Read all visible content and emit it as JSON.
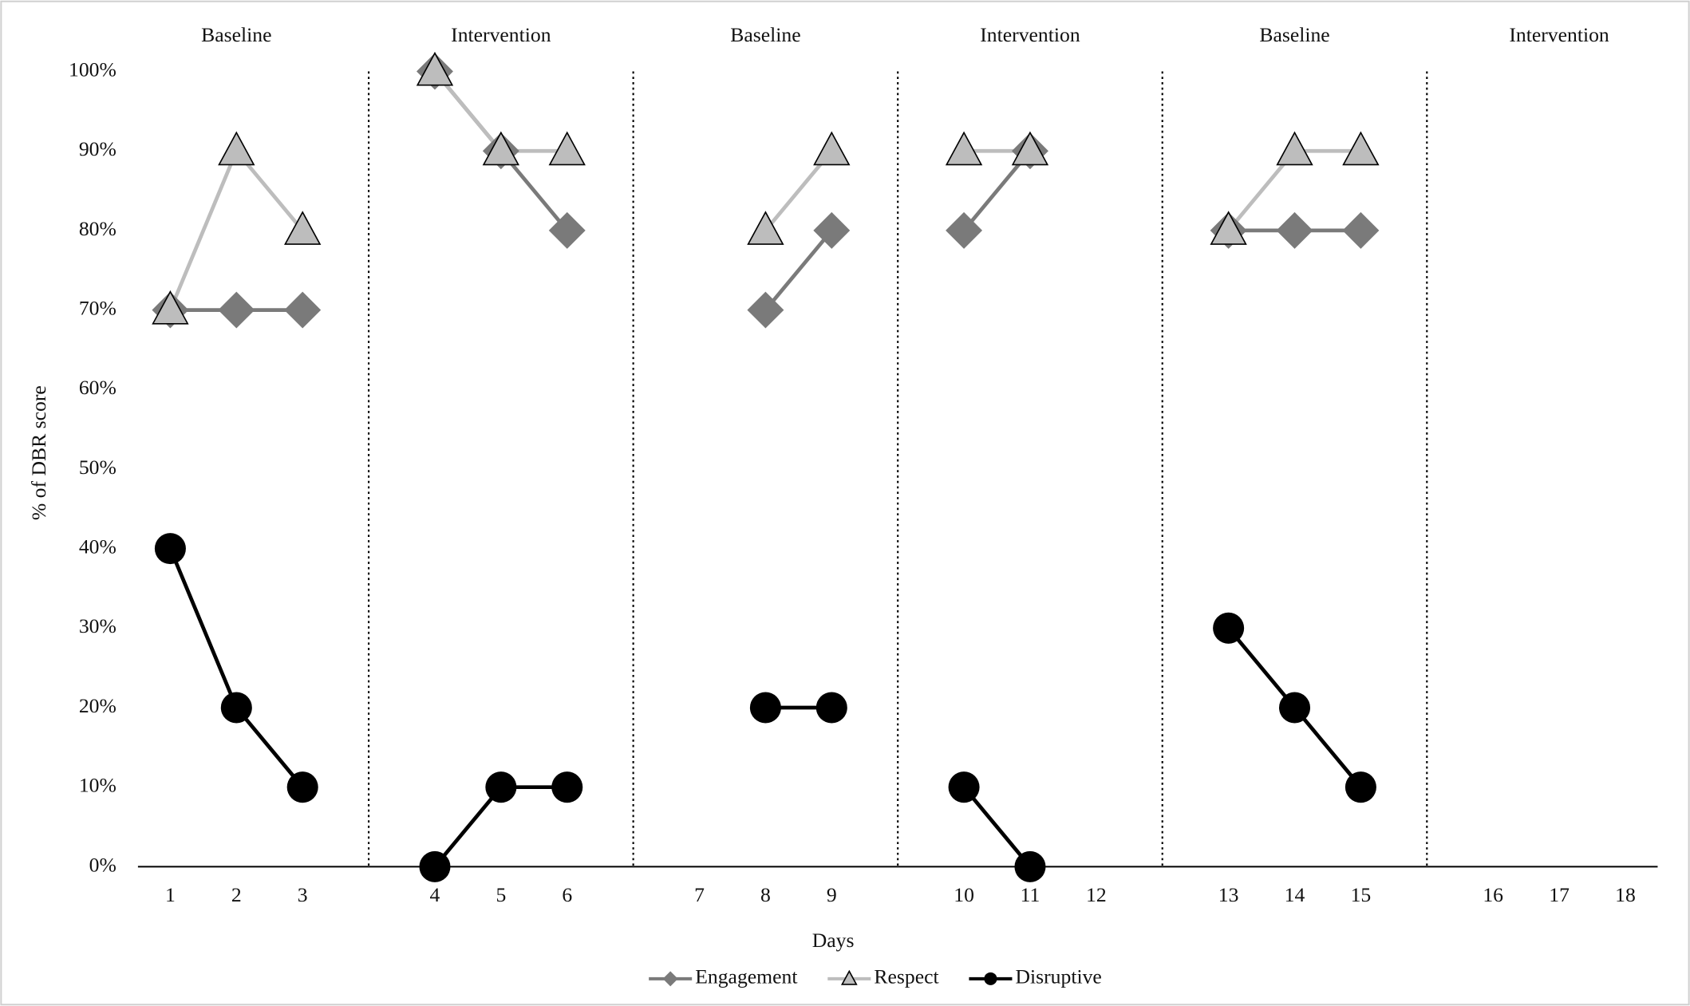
{
  "chart_data": {
    "type": "line",
    "xlabel": "Days",
    "ylabel": "% of DBR score",
    "phases": [
      "Baseline",
      "Intervention",
      "Baseline",
      "Intervention",
      "Baseline",
      "Intervention"
    ],
    "categories": [
      "1",
      "2",
      "3",
      null,
      "4",
      "5",
      "6",
      null,
      "7",
      "8",
      "9",
      null,
      "10",
      "11",
      "12",
      null,
      "13",
      "14",
      "15",
      null,
      "16",
      "17",
      "18"
    ],
    "series": [
      {
        "name": "Engagement",
        "color": "#7a7a7a",
        "marker": "diamond",
        "values": [
          70,
          70,
          70,
          null,
          100,
          90,
          80,
          null,
          null,
          70,
          80,
          null,
          80,
          90,
          null,
          null,
          80,
          80,
          80,
          null,
          null,
          null,
          null
        ]
      },
      {
        "name": "Respect",
        "color": "#bdbdbd",
        "marker": "triangle",
        "values": [
          70,
          90,
          80,
          null,
          100,
          90,
          90,
          null,
          null,
          80,
          90,
          null,
          90,
          90,
          null,
          null,
          80,
          90,
          90,
          null,
          null,
          null,
          null
        ]
      },
      {
        "name": "Disruptive",
        "color": "#000000",
        "marker": "circle",
        "values": [
          40,
          20,
          10,
          null,
          0,
          10,
          10,
          null,
          null,
          20,
          20,
          null,
          10,
          0,
          null,
          null,
          30,
          20,
          10,
          null,
          null,
          null,
          null
        ]
      }
    ],
    "ylim": [
      0,
      100
    ],
    "yticks": [
      {
        "value": 0,
        "label": "0%"
      },
      {
        "value": 10,
        "label": "10%"
      },
      {
        "value": 20,
        "label": "20%"
      },
      {
        "value": 30,
        "label": "30%"
      },
      {
        "value": 40,
        "label": "40%"
      },
      {
        "value": 50,
        "label": "50%"
      },
      {
        "value": 60,
        "label": "60%"
      },
      {
        "value": 70,
        "label": "70%"
      },
      {
        "value": 80,
        "label": "80%"
      },
      {
        "value": 90,
        "label": "90%"
      },
      {
        "value": 100,
        "label": "100%"
      }
    ],
    "legend": "bottom"
  }
}
